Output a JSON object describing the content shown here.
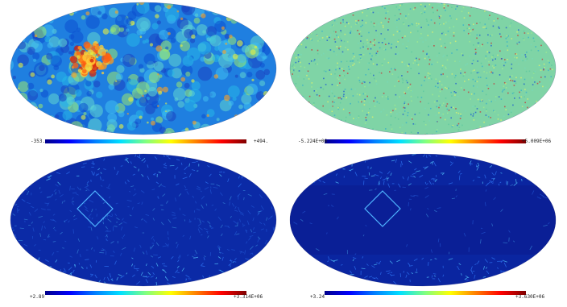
{
  "maps": [
    {
      "id": "top-left",
      "colorbar_min": "-353.",
      "colorbar_max": "+494.",
      "pattern": "cmb",
      "base_color": "#1f7fe0"
    },
    {
      "id": "top-right",
      "colorbar_min": "-5.224E+06",
      "colorbar_max": "+5.009E+06",
      "pattern": "noise",
      "base_color": "#7fd4a6"
    },
    {
      "id": "bottom-left",
      "colorbar_min": "+2.89",
      "colorbar_max": "+3.314E+06",
      "pattern": "sparse",
      "base_color": "#0b2aa6",
      "has_diamond_overlay": true
    },
    {
      "id": "bottom-right",
      "colorbar_min": "+3.24",
      "colorbar_max": "+3.630E+06",
      "pattern": "sparse-band",
      "base_color": "#0a25a0",
      "has_diamond_overlay": true
    }
  ],
  "colormap": [
    "#00008a",
    "#0000ff",
    "#0080ff",
    "#00e0ff",
    "#80ff80",
    "#ffff00",
    "#ff8000",
    "#ff0000",
    "#800000"
  ]
}
